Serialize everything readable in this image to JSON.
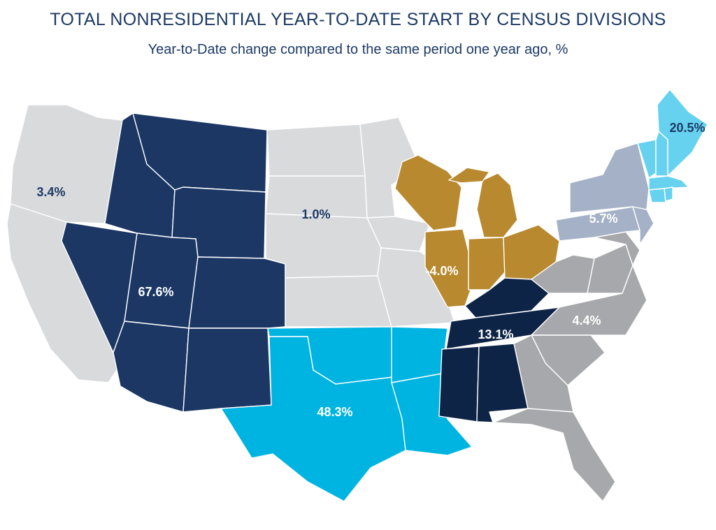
{
  "title": "TOTAL NONRESIDENTIAL YEAR-TO-DATE START BY CENSUS DIVISIONS",
  "subtitle": "Year-to-Date change compared to the same period one year ago, %",
  "divisions": {
    "pacific": {
      "value": "3.4%",
      "color": "#d9dadc",
      "label_color": "#1c3a66"
    },
    "mountain": {
      "value": "67.6%",
      "color": "#1c3764",
      "label_color": "#ffffff"
    },
    "west_north_central": {
      "value": "1.0%",
      "color": "#d9dadc",
      "label_color": "#1c3a66"
    },
    "west_south_central": {
      "value": "48.3%",
      "color": "#00b4e1",
      "label_color": "#ffffff"
    },
    "east_north_central": {
      "value": "-4.0%",
      "color": "#b8892e",
      "label_color": "#ffffff"
    },
    "east_south_central": {
      "value": "13.1%",
      "color": "#0e2446",
      "label_color": "#ffffff"
    },
    "south_atlantic": {
      "value": "4.4%",
      "color": "#a7a8ab",
      "label_color": "#ffffff"
    },
    "middle_atlantic": {
      "value": "5.7%",
      "color": "#a4b1c6",
      "label_color": "#ffffff"
    },
    "new_england": {
      "value": "20.5%",
      "color": "#66d2ef",
      "label_color": "#1c3a66"
    }
  }
}
